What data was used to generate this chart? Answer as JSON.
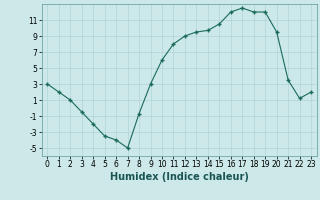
{
  "x": [
    0,
    1,
    2,
    3,
    4,
    5,
    6,
    7,
    8,
    9,
    10,
    11,
    12,
    13,
    14,
    15,
    16,
    17,
    18,
    19,
    20,
    21,
    22,
    23
  ],
  "y": [
    3,
    2,
    1,
    -0.5,
    -2,
    -3.5,
    -4,
    -5,
    -0.7,
    3,
    6,
    8,
    9,
    9.5,
    9.7,
    10.5,
    12,
    12.5,
    12,
    12,
    9.5,
    3.5,
    1.2,
    2
  ],
  "line_color": "#1a6b5a",
  "marker_color": "#1a6b5a",
  "bg_color": "#cce8e8",
  "grid_color": "#b0d4d4",
  "xlabel": "Humidex (Indice chaleur)",
  "xlim": [
    -0.5,
    23.5
  ],
  "ylim": [
    -6,
    13
  ],
  "yticks": [
    -5,
    -3,
    -1,
    1,
    3,
    5,
    7,
    9,
    11
  ],
  "xticks": [
    0,
    1,
    2,
    3,
    4,
    5,
    6,
    7,
    8,
    9,
    10,
    11,
    12,
    13,
    14,
    15,
    16,
    17,
    18,
    19,
    20,
    21,
    22,
    23
  ],
  "tick_fontsize": 5.5,
  "xlabel_fontsize": 7
}
